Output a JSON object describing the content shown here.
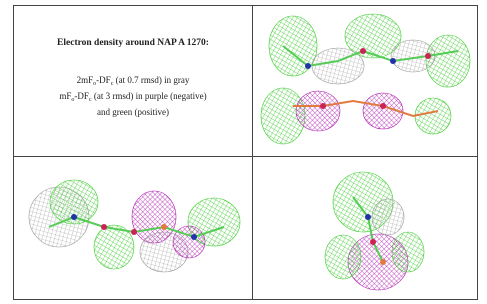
{
  "caption": {
    "title": "Electron density around NAP A 1270:",
    "lines": [
      [
        "2mF",
        "o",
        "-DF",
        "c",
        " (at 0.7 rmsd) in gray"
      ],
      [
        "mF",
        "o",
        "-DF",
        "c",
        " (at 3 rmsd) in purple (negative)"
      ],
      [
        "and green (positive)"
      ]
    ]
  }
}
